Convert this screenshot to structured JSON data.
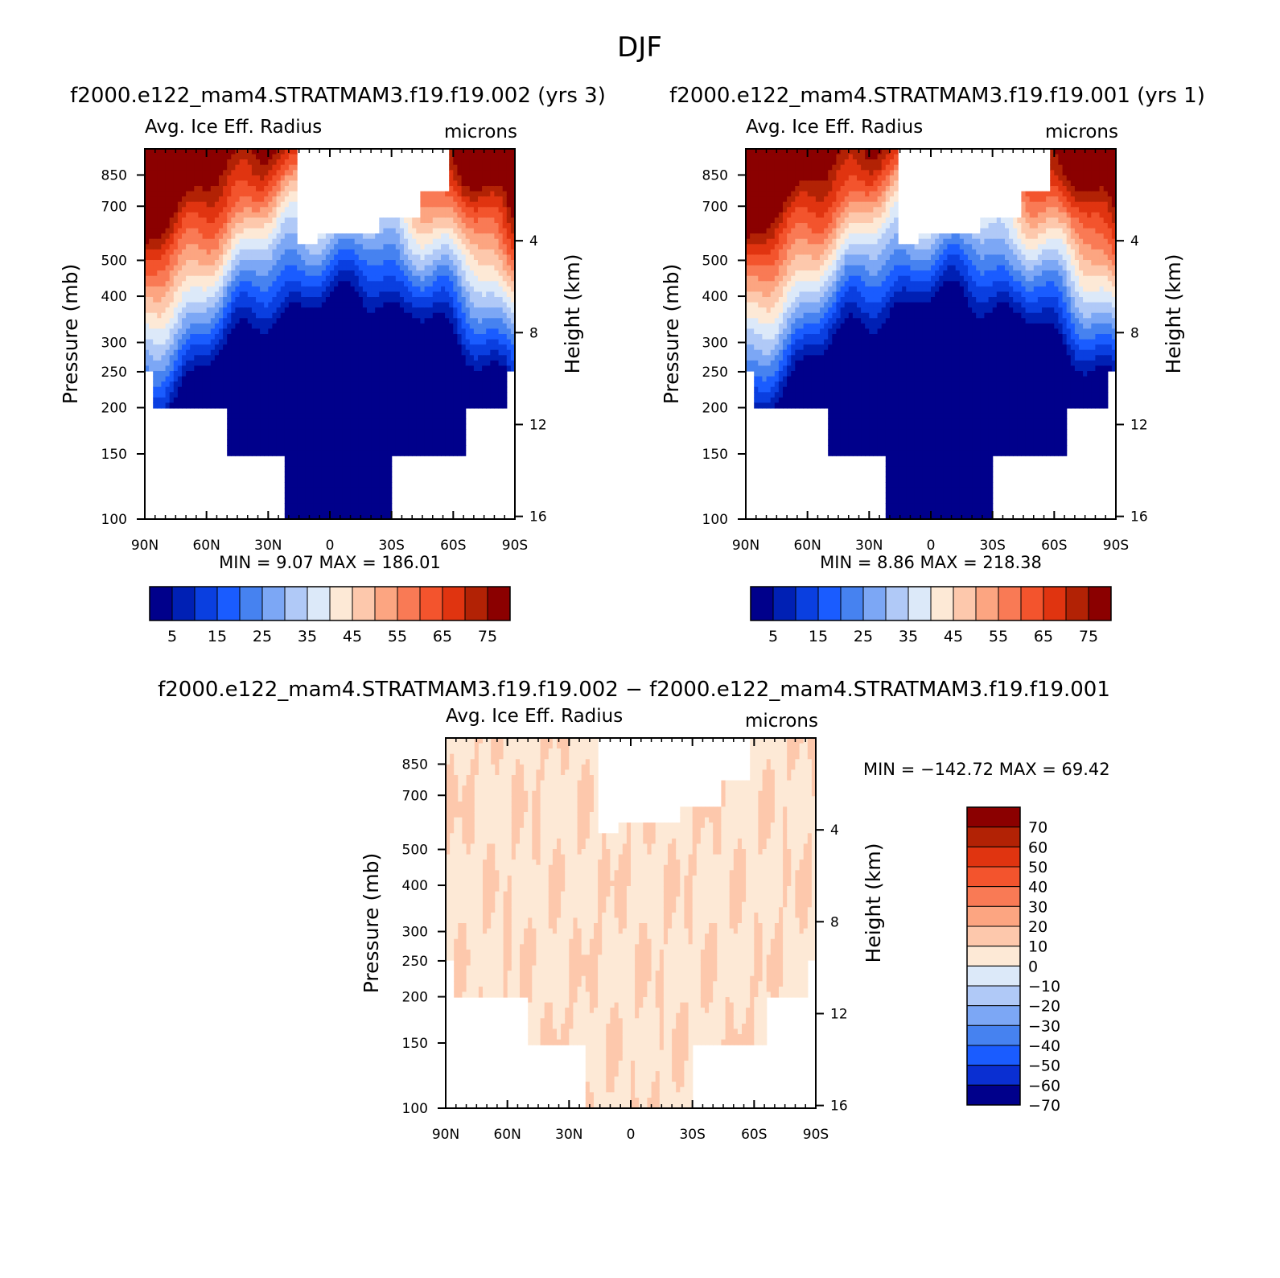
{
  "figure": {
    "title": "DJF"
  },
  "colors": {
    "abs_palette": [
      "#00008b",
      "#0020b4",
      "#0a3fe0",
      "#1a5cff",
      "#4682f0",
      "#7ca7f5",
      "#b0c9f7",
      "#dce9f9",
      "#fde9d6",
      "#fdc8ac",
      "#fca581",
      "#f97a55",
      "#f3542d",
      "#e03410",
      "#b22205",
      "#8b0000"
    ],
    "diff_palette": [
      "#00008b",
      "#0a2fd2",
      "#1a5cff",
      "#4682f0",
      "#7ca7f5",
      "#b0c9f7",
      "#dce9f9",
      "#fde9d6",
      "#fdc8ac",
      "#fca581",
      "#f97a55",
      "#f3542d",
      "#e03410",
      "#b22205",
      "#8b0000"
    ]
  },
  "chart_data": [
    {
      "type": "heatmap",
      "panel_title": "f2000.e122_mam4.STRATMAM3.f19.f19.002 (yrs 3)",
      "left_string": "Avg. Ice Eff. Radius",
      "right_string": "microns",
      "ylabel": "Pressure (mb)",
      "ylabel_right": "Height (km)",
      "x_ticks": [
        "90N",
        "60N",
        "30N",
        "0",
        "30S",
        "60S",
        "90S"
      ],
      "y_ticks": [
        "100",
        "150",
        "200",
        "250",
        "300",
        "400",
        "500",
        "700",
        "850"
      ],
      "y_ticks_right": [
        "16",
        "12",
        "8",
        "4"
      ],
      "stats": {
        "min_label": "MIN =",
        "min_value": "9.07",
        "max_label": "MAX =",
        "max_value": "186.01"
      },
      "colorbar": {
        "orientation": "horizontal",
        "labels": [
          "5",
          "15",
          "25",
          "35",
          "45",
          "55",
          "65",
          "75"
        ]
      },
      "y_scale": "log",
      "ylim": [
        1000,
        100
      ],
      "xlim": [
        90,
        -90
      ]
    },
    {
      "type": "heatmap",
      "panel_title": "f2000.e122_mam4.STRATMAM3.f19.f19.001 (yrs 1)",
      "left_string": "Avg. Ice Eff. Radius",
      "right_string": "microns",
      "ylabel": "Pressure (mb)",
      "ylabel_right": "Height (km)",
      "x_ticks": [
        "90N",
        "60N",
        "30N",
        "0",
        "30S",
        "60S",
        "90S"
      ],
      "y_ticks": [
        "100",
        "150",
        "200",
        "250",
        "300",
        "400",
        "500",
        "700",
        "850"
      ],
      "y_ticks_right": [
        "16",
        "12",
        "8",
        "4"
      ],
      "stats": {
        "min_label": "MIN =",
        "min_value": "8.86",
        "max_label": "MAX =",
        "max_value": "218.38"
      },
      "colorbar": {
        "orientation": "horizontal",
        "labels": [
          "5",
          "15",
          "25",
          "35",
          "45",
          "55",
          "65",
          "75"
        ]
      },
      "y_scale": "log",
      "ylim": [
        1000,
        100
      ],
      "xlim": [
        90,
        -90
      ]
    },
    {
      "type": "heatmap",
      "panel_title": "f2000.e122_mam4.STRATMAM3.f19.f19.002 − f2000.e122_mam4.STRATMAM3.f19.f19.001",
      "left_string": "Avg. Ice Eff. Radius",
      "right_string": "microns",
      "ylabel": "Pressure (mb)",
      "ylabel_right": "Height (km)",
      "x_ticks": [
        "90N",
        "60N",
        "30N",
        "0",
        "30S",
        "60S",
        "90S"
      ],
      "y_ticks": [
        "100",
        "150",
        "200",
        "250",
        "300",
        "400",
        "500",
        "700",
        "850"
      ],
      "y_ticks_right": [
        "16",
        "12",
        "8",
        "4"
      ],
      "stats": {
        "min_label": "MIN =",
        "min_value": "−142.72",
        "max_label": "MAX =",
        "max_value": "69.42"
      },
      "colorbar": {
        "orientation": "vertical",
        "labels": [
          "70",
          "60",
          "50",
          "40",
          "30",
          "20",
          "10",
          "0",
          "−10",
          "−20",
          "−30",
          "−40",
          "−50",
          "−60",
          "−70"
        ]
      },
      "y_scale": "log",
      "ylim": [
        1000,
        100
      ],
      "xlim": [
        90,
        -90
      ]
    }
  ]
}
